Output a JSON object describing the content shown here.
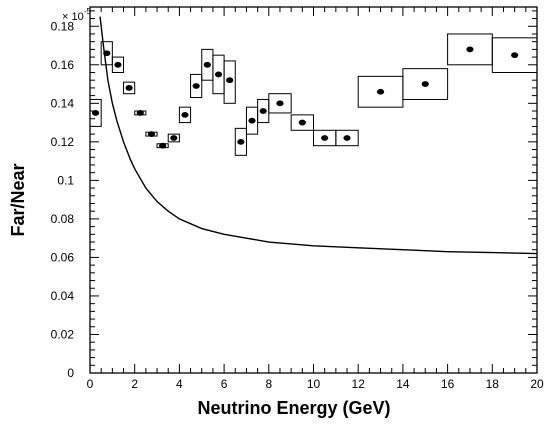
{
  "chart_data": {
    "type": "scatter",
    "title": "",
    "xlabel": "Neutrino Energy (GeV)",
    "ylabel": "Far/Near",
    "y_multiplier": {
      "base": "× 10",
      "exponent": "-5"
    },
    "xlim": [
      0,
      20
    ],
    "ylim": [
      0,
      0.19
    ],
    "xticks": [
      "0",
      "2",
      "4",
      "6",
      "8",
      "10",
      "12",
      "14",
      "16",
      "18",
      "20"
    ],
    "yticks": [
      "0",
      "0.02",
      "0.04",
      "0.06",
      "0.08",
      "0.1",
      "0.12",
      "0.14",
      "0.16",
      "0.18"
    ],
    "grid": false,
    "colors": {
      "marker": "#000000",
      "line": "#000000",
      "box": "#000000"
    },
    "series": [
      {
        "kind": "points_with_error_boxes",
        "points": [
          {
            "x": 0.25,
            "y": 0.135,
            "x_low": 0.0,
            "x_high": 0.5,
            "y_low": 0.128,
            "y_high": 0.142
          },
          {
            "x": 0.75,
            "y": 0.166,
            "x_low": 0.5,
            "x_high": 1.0,
            "y_low": 0.16,
            "y_high": 0.172
          },
          {
            "x": 1.25,
            "y": 0.16,
            "x_low": 1.0,
            "x_high": 1.5,
            "y_low": 0.156,
            "y_high": 0.164
          },
          {
            "x": 1.75,
            "y": 0.148,
            "x_low": 1.5,
            "x_high": 2.0,
            "y_low": 0.145,
            "y_high": 0.151
          },
          {
            "x": 2.25,
            "y": 0.135,
            "x_low": 2.0,
            "x_high": 2.5,
            "y_low": 0.134,
            "y_high": 0.136
          },
          {
            "x": 2.75,
            "y": 0.124,
            "x_low": 2.5,
            "x_high": 3.0,
            "y_low": 0.123,
            "y_high": 0.125
          },
          {
            "x": 3.25,
            "y": 0.118,
            "x_low": 3.0,
            "x_high": 3.5,
            "y_low": 0.117,
            "y_high": 0.119
          },
          {
            "x": 3.75,
            "y": 0.122,
            "x_low": 3.5,
            "x_high": 4.0,
            "y_low": 0.12,
            "y_high": 0.124
          },
          {
            "x": 4.25,
            "y": 0.134,
            "x_low": 4.0,
            "x_high": 4.5,
            "y_low": 0.13,
            "y_high": 0.138
          },
          {
            "x": 4.75,
            "y": 0.149,
            "x_low": 4.5,
            "x_high": 5.0,
            "y_low": 0.143,
            "y_high": 0.155
          },
          {
            "x": 5.25,
            "y": 0.16,
            "x_low": 5.0,
            "x_high": 5.5,
            "y_low": 0.152,
            "y_high": 0.168
          },
          {
            "x": 5.75,
            "y": 0.155,
            "x_low": 5.5,
            "x_high": 6.0,
            "y_low": 0.145,
            "y_high": 0.165
          },
          {
            "x": 6.25,
            "y": 0.152,
            "x_low": 6.0,
            "x_high": 6.5,
            "y_low": 0.14,
            "y_high": 0.162
          },
          {
            "x": 6.75,
            "y": 0.12,
            "x_low": 6.5,
            "x_high": 7.0,
            "y_low": 0.113,
            "y_high": 0.127
          },
          {
            "x": 7.25,
            "y": 0.131,
            "x_low": 7.0,
            "x_high": 7.5,
            "y_low": 0.124,
            "y_high": 0.138
          },
          {
            "x": 7.75,
            "y": 0.136,
            "x_low": 7.5,
            "x_high": 8.0,
            "y_low": 0.13,
            "y_high": 0.142
          },
          {
            "x": 8.5,
            "y": 0.14,
            "x_low": 8.0,
            "x_high": 9.0,
            "y_low": 0.135,
            "y_high": 0.145
          },
          {
            "x": 9.5,
            "y": 0.13,
            "x_low": 9.0,
            "x_high": 10.0,
            "y_low": 0.126,
            "y_high": 0.134
          },
          {
            "x": 10.5,
            "y": 0.122,
            "x_low": 10.0,
            "x_high": 11.0,
            "y_low": 0.118,
            "y_high": 0.126
          },
          {
            "x": 11.5,
            "y": 0.122,
            "x_low": 11.0,
            "x_high": 12.0,
            "y_low": 0.118,
            "y_high": 0.126
          },
          {
            "x": 13.0,
            "y": 0.146,
            "x_low": 12.0,
            "x_high": 14.0,
            "y_low": 0.138,
            "y_high": 0.154
          },
          {
            "x": 15.0,
            "y": 0.15,
            "x_low": 14.0,
            "x_high": 16.0,
            "y_low": 0.142,
            "y_high": 0.158
          },
          {
            "x": 17.0,
            "y": 0.168,
            "x_low": 16.0,
            "x_high": 18.0,
            "y_low": 0.16,
            "y_high": 0.176
          },
          {
            "x": 19.0,
            "y": 0.165,
            "x_low": 18.0,
            "x_high": 20.0,
            "y_low": 0.156,
            "y_high": 0.174
          }
        ]
      },
      {
        "kind": "line",
        "x": [
          0.45,
          0.6,
          0.8,
          1.0,
          1.2,
          1.5,
          1.8,
          2.0,
          2.5,
          3.0,
          3.5,
          4.0,
          5.0,
          6.0,
          7.0,
          8.0,
          10.0,
          12.0,
          14.0,
          16.0,
          18.0,
          20.0
        ],
        "y": [
          0.185,
          0.17,
          0.152,
          0.14,
          0.131,
          0.12,
          0.111,
          0.106,
          0.096,
          0.089,
          0.084,
          0.08,
          0.075,
          0.072,
          0.07,
          0.068,
          0.066,
          0.065,
          0.064,
          0.063,
          0.0625,
          0.062
        ]
      }
    ]
  }
}
